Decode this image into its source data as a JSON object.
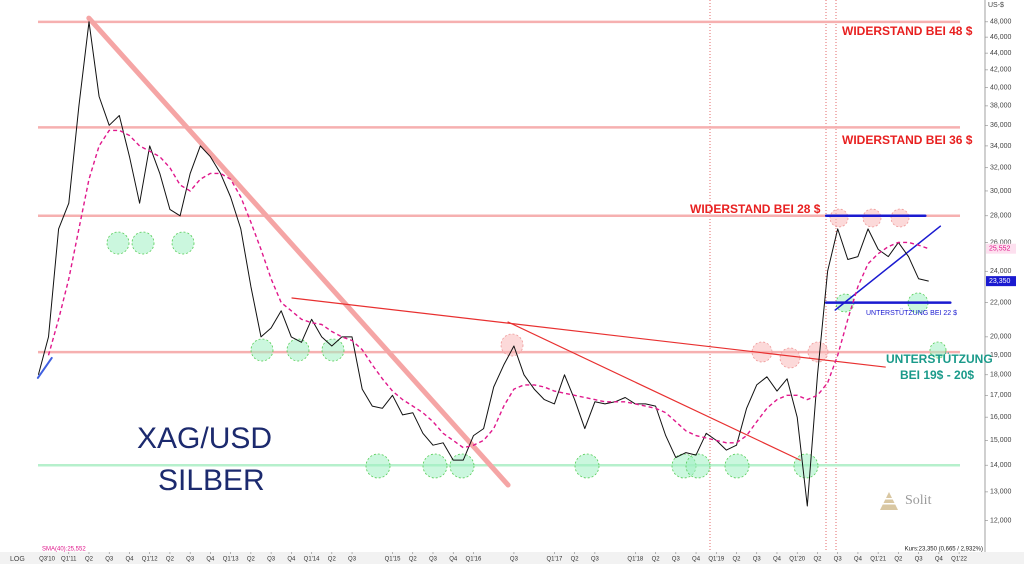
{
  "chart_data": {
    "type": "line",
    "log_scale": true,
    "axis_unit": "US-$",
    "scale_label": "LOG",
    "xlim": [
      2010.62,
      2022.32
    ],
    "ylim": [
      11,
      51
    ],
    "x": [
      2010.625,
      2010.75,
      2010.875,
      2011,
      2011.125,
      2011.25,
      2011.375,
      2011.5,
      2011.625,
      2011.75,
      2011.875,
      2012,
      2012.125,
      2012.25,
      2012.375,
      2012.5,
      2012.625,
      2012.75,
      2012.875,
      2013,
      2013.125,
      2013.25,
      2013.375,
      2013.5,
      2013.625,
      2013.75,
      2013.875,
      2014,
      2014.125,
      2014.25,
      2014.375,
      2014.5,
      2014.625,
      2014.75,
      2014.875,
      2015,
      2015.125,
      2015.25,
      2015.375,
      2015.5,
      2015.625,
      2015.75,
      2015.875,
      2016,
      2016.125,
      2016.25,
      2016.375,
      2016.5,
      2016.625,
      2016.75,
      2016.875,
      2017,
      2017.125,
      2017.25,
      2017.375,
      2017.5,
      2017.625,
      2017.75,
      2017.875,
      2018,
      2018.125,
      2018.25,
      2018.375,
      2018.5,
      2018.625,
      2018.75,
      2018.875,
      2019,
      2019.125,
      2019.25,
      2019.375,
      2019.5,
      2019.625,
      2019.75,
      2019.875,
      2020,
      2020.125,
      2020.25,
      2020.375,
      2020.5,
      2020.625,
      2020.75,
      2020.875,
      2021,
      2021.125,
      2021.25,
      2021.375,
      2021.5,
      2021.625
    ],
    "series": [
      {
        "color": "#111111",
        "values": [
          18,
          20,
          27,
          29,
          38,
          48,
          39,
          36,
          37,
          33,
          29,
          34,
          31.5,
          28.5,
          28,
          31.5,
          34,
          33,
          31.5,
          29.5,
          27,
          23,
          20,
          20.5,
          21.5,
          20,
          19.7,
          21,
          20,
          19.5,
          20,
          20,
          17.3,
          16.5,
          16.4,
          17,
          16.1,
          16.2,
          15.3,
          14.8,
          14.9,
          14.2,
          14.2,
          15.2,
          15.5,
          17.4,
          18.5,
          19.5,
          18,
          17.3,
          16.8,
          16.6,
          18,
          16.8,
          15.5,
          16.7,
          16.6,
          16.7,
          16.9,
          16.6,
          16.6,
          16.5,
          15.2,
          14.3,
          14.5,
          14.4,
          15.3,
          15,
          14.6,
          14.8,
          16.4,
          17.5,
          17.9,
          17.2,
          17.8,
          16,
          12.5,
          18,
          24,
          27,
          24.8,
          25,
          27,
          25.5,
          25,
          26,
          25,
          23.5,
          23.35
        ]
      },
      {
        "color": "#e0188c",
        "dashed": true,
        "values": [
          null,
          19,
          21,
          23.5,
          27,
          31,
          34,
          35.5,
          35.5,
          35,
          34,
          33.5,
          33,
          32,
          30.5,
          30,
          31,
          31.5,
          31.5,
          31,
          29.5,
          27.5,
          25.5,
          23.5,
          22,
          21.5,
          21,
          20.8,
          20.7,
          20.3,
          20,
          19.8,
          19.3,
          18.5,
          17.8,
          17.2,
          16.8,
          16.5,
          16.2,
          15.8,
          15.3,
          15,
          14.7,
          14.8,
          15,
          15.5,
          16.5,
          17.3,
          17.5,
          17.5,
          17.4,
          17.2,
          17.1,
          17,
          16.9,
          16.8,
          16.7,
          16.7,
          16.7,
          16.6,
          16.5,
          16.4,
          16.2,
          15.8,
          15.4,
          15.2,
          15.1,
          15,
          14.9,
          14.9,
          15.2,
          15.8,
          16.4,
          16.8,
          17,
          17,
          16.8,
          17,
          17.6,
          19,
          21,
          23,
          24.5,
          25.2,
          25.7,
          26,
          26,
          25.8,
          25.552
        ]
      }
    ],
    "sma_last_label": "25,552",
    "price_last_label": "23,350",
    "sma_legend": "SMA(40):25,552",
    "price_legend": "Kurs:23,350 (0,665 / 2,932%)",
    "yticks": [
      {
        "value": 12,
        "label": "12,000"
      },
      {
        "value": 13,
        "label": "13,000"
      },
      {
        "value": 14,
        "label": "14,000"
      },
      {
        "value": 15,
        "label": "15,000"
      },
      {
        "value": 16,
        "label": "16,000"
      },
      {
        "value": 17,
        "label": "17,000"
      },
      {
        "value": 18,
        "label": "18,000"
      },
      {
        "value": 19,
        "label": "19,000"
      },
      {
        "value": 20,
        "label": "20,000"
      },
      {
        "value": 22,
        "label": "22,000"
      },
      {
        "value": 24,
        "label": "24,000"
      },
      {
        "value": 26,
        "label": "26,000"
      },
      {
        "value": 28,
        "label": "28,000"
      },
      {
        "value": 30,
        "label": "30,000"
      },
      {
        "value": 32,
        "label": "32,000"
      },
      {
        "value": 34,
        "label": "34,000"
      },
      {
        "value": 36,
        "label": "36,000"
      },
      {
        "value": 38,
        "label": "38,000"
      },
      {
        "value": 40,
        "label": "40,000"
      },
      {
        "value": 42,
        "label": "42,000"
      },
      {
        "value": 44,
        "label": "44,000"
      },
      {
        "value": 46,
        "label": "46,000"
      },
      {
        "value": 48,
        "label": "48,000"
      }
    ],
    "xticks": [
      {
        "value": 2010.5,
        "label": "Q3'10"
      },
      {
        "value": 2011,
        "label": "Q1'11"
      },
      {
        "value": 2011.25,
        "label": "Q2"
      },
      {
        "value": 2011.5,
        "label": "Q3"
      },
      {
        "value": 2011.75,
        "label": "Q4"
      },
      {
        "value": 2012,
        "label": "Q1'12"
      },
      {
        "value": 2012.25,
        "label": "Q2"
      },
      {
        "value": 2012.5,
        "label": "Q3"
      },
      {
        "value": 2012.75,
        "label": "Q4"
      },
      {
        "value": 2013,
        "label": "Q1'13"
      },
      {
        "value": 2013.25,
        "label": "Q2"
      },
      {
        "value": 2013.5,
        "label": "Q3"
      },
      {
        "value": 2013.75,
        "label": "Q4"
      },
      {
        "value": 2014,
        "label": "Q1'14"
      },
      {
        "value": 2014.25,
        "label": "Q2"
      },
      {
        "value": 2014.5,
        "label": "Q3"
      },
      {
        "value": 2015,
        "label": "Q1'15"
      },
      {
        "value": 2015.25,
        "label": "Q2"
      },
      {
        "value": 2015.5,
        "label": "Q3"
      },
      {
        "value": 2015.75,
        "label": "Q4"
      },
      {
        "value": 2016,
        "label": "Q1'16"
      },
      {
        "value": 2016.5,
        "label": "Q3"
      },
      {
        "value": 2017,
        "label": "Q1'17"
      },
      {
        "value": 2017.25,
        "label": "Q2"
      },
      {
        "value": 2017.5,
        "label": "Q3"
      },
      {
        "value": 2018,
        "label": "Q1'18"
      },
      {
        "value": 2018.25,
        "label": "Q2"
      },
      {
        "value": 2018.5,
        "label": "Q3"
      },
      {
        "value": 2018.75,
        "label": "Q4"
      },
      {
        "value": 2019,
        "label": "Q1'19"
      },
      {
        "value": 2019.25,
        "label": "Q2"
      },
      {
        "value": 2019.5,
        "label": "Q3"
      },
      {
        "value": 2019.75,
        "label": "Q4"
      },
      {
        "value": 2020,
        "label": "Q1'20"
      },
      {
        "value": 2020.25,
        "label": "Q2"
      },
      {
        "value": 2020.5,
        "label": "Q3"
      },
      {
        "value": 2020.75,
        "label": "Q4"
      },
      {
        "value": 2021,
        "label": "Q1'21"
      },
      {
        "value": 2021.25,
        "label": "Q2"
      },
      {
        "value": 2021.5,
        "label": "Q3"
      },
      {
        "value": 2021.75,
        "label": "Q4"
      },
      {
        "value": 2022,
        "label": "Q1'22"
      }
    ],
    "levels": [
      {
        "value": 48,
        "color": "#f6b0b0"
      },
      {
        "value": 35.8,
        "color": "#f6b0b0"
      },
      {
        "value": 28,
        "color": "#f6b0b0"
      },
      {
        "value": 19.17,
        "color": "#f6b0b0"
      },
      {
        "value": 14,
        "color": "#b6f0cc"
      }
    ],
    "trendlines": [
      {
        "x": [
          2011.248,
          2016.428
        ],
        "values": [
          48.5,
          13.25
        ],
        "color": "#f5a5a5",
        "width": 5
      },
      {
        "x": [
          2013.758,
          2021.088
        ],
        "values": [
          22.28,
          18.39
        ],
        "color": "#e83030",
        "width": 1.2
      },
      {
        "x": [
          2016.428,
          2020.037
        ],
        "values": [
          20.84,
          14.2
        ],
        "color": "#e83030",
        "width": 1.2
      },
      {
        "x": [
          2020.358,
          2021.582
        ],
        "values": [
          28,
          28
        ],
        "color": "#1a1ad0",
        "width": 2.5
      },
      {
        "x": [
          2020.358,
          2021.891
        ],
        "values": [
          22,
          22
        ],
        "color": "#1a1ad0",
        "width": 2.5
      },
      {
        "x": [
          2020.47,
          2021.768
        ],
        "values": [
          21.55,
          27.2
        ],
        "color": "#1a1ad0",
        "width": 1.5
      },
      {
        "x": [
          2010.618,
          2010.79
        ],
        "values": [
          17.84,
          18.86
        ],
        "color": "#4060e0",
        "width": 2
      }
    ],
    "annotations": [
      "WIDERSTAND BEI 48 $",
      "WIDERSTAND BEI 36 $",
      "WIDERSTAND BEI 28 $",
      "UNTERSTÜTZUNG BEI 22 $",
      "UNTERSTÜTZUNG",
      "BEI 19$ - 20$",
      "XAG/USD",
      "SILBER",
      "Solit"
    ]
  }
}
